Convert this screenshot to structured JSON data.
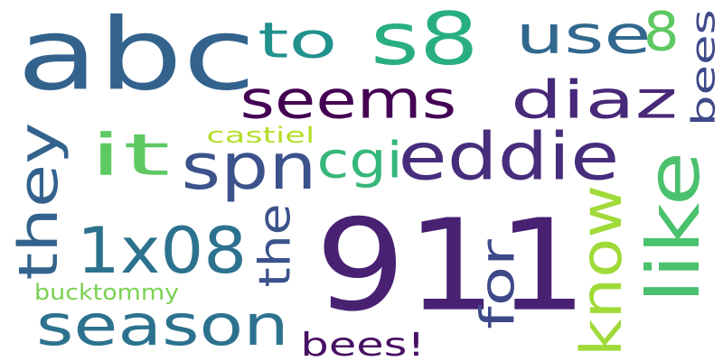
{
  "cloud": {
    "background": "#ffffff",
    "words": [
      {
        "text": "911",
        "color": "#482173"
      },
      {
        "text": "abc",
        "color": "#33638d"
      },
      {
        "text": "s8",
        "color": "#29af7f"
      },
      {
        "text": "seems",
        "color": "#440154"
      },
      {
        "text": "to",
        "color": "#21918c"
      },
      {
        "text": "use",
        "color": "#31688e"
      },
      {
        "text": "8",
        "color": "#5ec962"
      },
      {
        "text": "diaz",
        "color": "#482878"
      },
      {
        "text": "bees",
        "color": "#3e4989"
      },
      {
        "text": "castiel",
        "color": "#b5de2b"
      },
      {
        "text": "it",
        "color": "#5ec962"
      },
      {
        "text": "spn",
        "color": "#3b528b"
      },
      {
        "text": "cgi",
        "color": "#35b779"
      },
      {
        "text": "eddie",
        "color": "#472d7b"
      },
      {
        "text": "they",
        "color": "#33638d"
      },
      {
        "text": "1x08",
        "color": "#2c728e"
      },
      {
        "text": "the",
        "color": "#3b528b"
      },
      {
        "text": "for",
        "color": "#3e4989"
      },
      {
        "text": "know",
        "color": "#a0da39"
      },
      {
        "text": "like",
        "color": "#4ac16d"
      },
      {
        "text": "season",
        "color": "#2c728e"
      },
      {
        "text": "bucktommy",
        "color": "#7ad151"
      },
      {
        "text": "bees!",
        "color": "#471063"
      }
    ]
  }
}
